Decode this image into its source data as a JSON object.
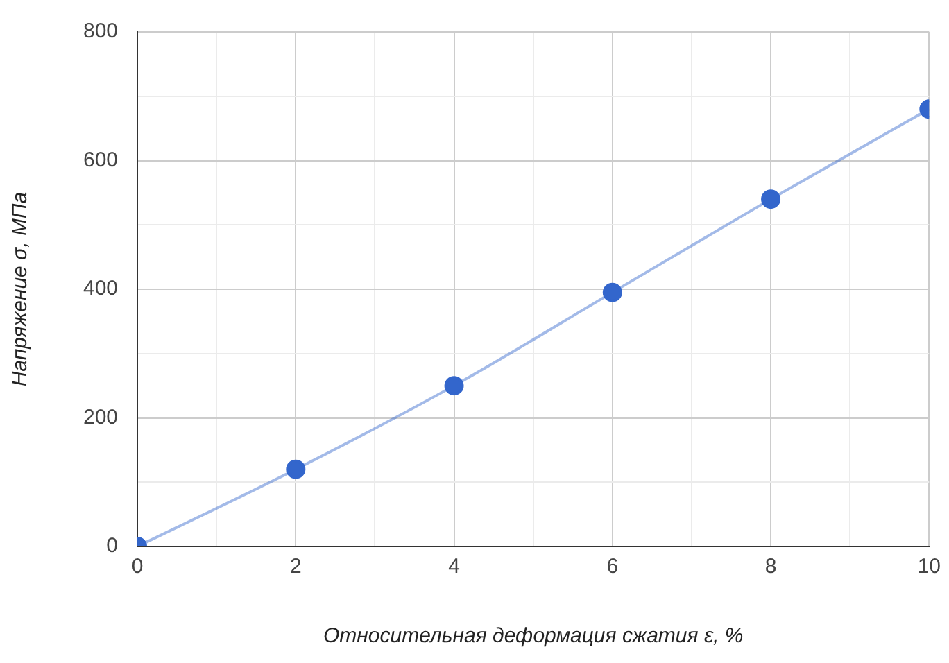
{
  "chart_data": {
    "type": "line",
    "xlabel": "Относительная деформация сжатия ε, %",
    "ylabel": "Напряжение σ, МПа",
    "x": [
      0,
      2,
      4,
      6,
      8,
      10
    ],
    "series": [
      {
        "color": "#3366cc",
        "values": [
          0,
          120,
          250,
          395,
          540,
          680
        ]
      }
    ],
    "xlim": [
      0,
      10
    ],
    "xticks": [
      0,
      {
        "value": 1,
        "label": null
      },
      2,
      {
        "value": 3,
        "label": null
      },
      4,
      {
        "value": 5,
        "label": null
      },
      6,
      {
        "value": 7,
        "label": null
      },
      8,
      {
        "value": 9,
        "label": null
      },
      10
    ],
    "ylim": [
      0,
      800
    ],
    "yticks": [
      0,
      {
        "value": 100,
        "label": null
      },
      200,
      {
        "value": 300,
        "label": null
      },
      400,
      {
        "value": 500,
        "label": null
      },
      600,
      {
        "value": 700,
        "label": null
      },
      800
    ],
    "grid": true,
    "legend": false,
    "marker": "circle",
    "line_style": "solid"
  }
}
